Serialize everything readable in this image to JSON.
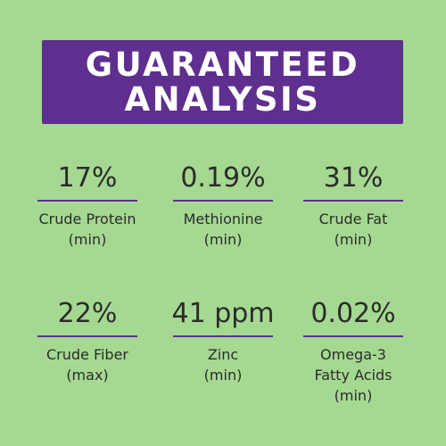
{
  "header": {
    "line1": "GUARANTEED",
    "line2": "ANALYSIS"
  },
  "colors": {
    "background": "#a5d991",
    "accent": "#5e2f8e",
    "text": "#2b2b2b",
    "banner_text": "#ffffff"
  },
  "nutrients": [
    {
      "value": "17%",
      "label_line1": "Crude Protein",
      "label_line2": "(min)",
      "label_line3": ""
    },
    {
      "value": "0.19%",
      "label_line1": "Methionine",
      "label_line2": "(min)",
      "label_line3": ""
    },
    {
      "value": "31%",
      "label_line1": "Crude Fat",
      "label_line2": "(min)",
      "label_line3": ""
    },
    {
      "value": "22%",
      "label_line1": "Crude Fiber",
      "label_line2": "(max)",
      "label_line3": ""
    },
    {
      "value": "41 ppm",
      "label_line1": "Zinc",
      "label_line2": "(min)",
      "label_line3": ""
    },
    {
      "value": "0.02%",
      "label_line1": "Omega-3",
      "label_line2": "Fatty Acids",
      "label_line3": "(min)"
    }
  ]
}
